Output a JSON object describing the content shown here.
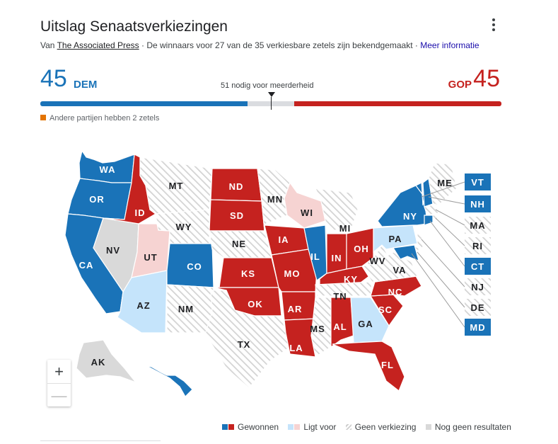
{
  "header": {
    "title": "Uitslag Senaatsverkiezingen",
    "source_prefix": "Van",
    "source_name": "The Associated Press",
    "source_suffix": "· De winnaars voor 27 van de 35 verkiesbare zetels zijn bekendgemaakt ·",
    "more_info": "Meer informatie"
  },
  "tally": {
    "dem_seats": "45",
    "dem_label": "DEM",
    "gop_seats": "45",
    "gop_label": "GOP",
    "majority_text": "51 nodig voor meerderheid",
    "others_text": "Andere partijen hebben 2 zetels"
  },
  "colors": {
    "dem": "#1a73b8",
    "gop": "#c5221f",
    "dem_lean": "#c5e4fb",
    "gop_lean": "#f6d3d2",
    "no_result": "#d9d9d9",
    "others": "#e37400"
  },
  "chart_data": {
    "type": "map",
    "total_seats": 100,
    "majority": 51,
    "dem_seats": 45,
    "gop_seats": 45,
    "other_seats": 2,
    "states": [
      {
        "code": "WA",
        "status": "dem"
      },
      {
        "code": "OR",
        "status": "dem"
      },
      {
        "code": "CA",
        "status": "dem"
      },
      {
        "code": "NV",
        "status": "no_result"
      },
      {
        "code": "ID",
        "status": "gop"
      },
      {
        "code": "UT",
        "status": "gop_lean"
      },
      {
        "code": "AZ",
        "status": "dem_lean"
      },
      {
        "code": "MT",
        "status": "no_election"
      },
      {
        "code": "WY",
        "status": "no_election"
      },
      {
        "code": "CO",
        "status": "dem"
      },
      {
        "code": "NM",
        "status": "no_election"
      },
      {
        "code": "ND",
        "status": "gop"
      },
      {
        "code": "SD",
        "status": "gop"
      },
      {
        "code": "NE",
        "status": "no_election"
      },
      {
        "code": "KS",
        "status": "gop"
      },
      {
        "code": "OK",
        "status": "gop"
      },
      {
        "code": "TX",
        "status": "no_election"
      },
      {
        "code": "MN",
        "status": "no_election"
      },
      {
        "code": "IA",
        "status": "gop"
      },
      {
        "code": "MO",
        "status": "gop"
      },
      {
        "code": "AR",
        "status": "gop"
      },
      {
        "code": "LA",
        "status": "gop"
      },
      {
        "code": "WI",
        "status": "gop_lean"
      },
      {
        "code": "IL",
        "status": "dem"
      },
      {
        "code": "MI",
        "status": "no_election"
      },
      {
        "code": "IN",
        "status": "gop"
      },
      {
        "code": "OH",
        "status": "gop"
      },
      {
        "code": "KY",
        "status": "gop"
      },
      {
        "code": "TN",
        "status": "no_election"
      },
      {
        "code": "MS",
        "status": "no_election"
      },
      {
        "code": "AL",
        "status": "gop"
      },
      {
        "code": "GA",
        "status": "dem_lean"
      },
      {
        "code": "FL",
        "status": "gop"
      },
      {
        "code": "SC",
        "status": "gop"
      },
      {
        "code": "NC",
        "status": "gop"
      },
      {
        "code": "VA",
        "status": "no_election"
      },
      {
        "code": "WV",
        "status": "no_election"
      },
      {
        "code": "PA",
        "status": "dem_lean"
      },
      {
        "code": "NY",
        "status": "dem"
      },
      {
        "code": "VT",
        "status": "dem"
      },
      {
        "code": "NH",
        "status": "dem"
      },
      {
        "code": "ME",
        "status": "no_election"
      },
      {
        "code": "MA",
        "status": "no_election"
      },
      {
        "code": "RI",
        "status": "no_election"
      },
      {
        "code": "CT",
        "status": "dem"
      },
      {
        "code": "NJ",
        "status": "no_election"
      },
      {
        "code": "DE",
        "status": "no_election"
      },
      {
        "code": "MD",
        "status": "dem"
      },
      {
        "code": "AK",
        "status": "no_result"
      },
      {
        "code": "HI",
        "status": "dem"
      }
    ]
  },
  "legend": {
    "won": "Gewonnen",
    "leading": "Ligt voor",
    "no_election": "Geen verkiezing",
    "no_results": "Nog geen resultaten"
  },
  "zoom": {
    "in": "+",
    "out": "—"
  }
}
